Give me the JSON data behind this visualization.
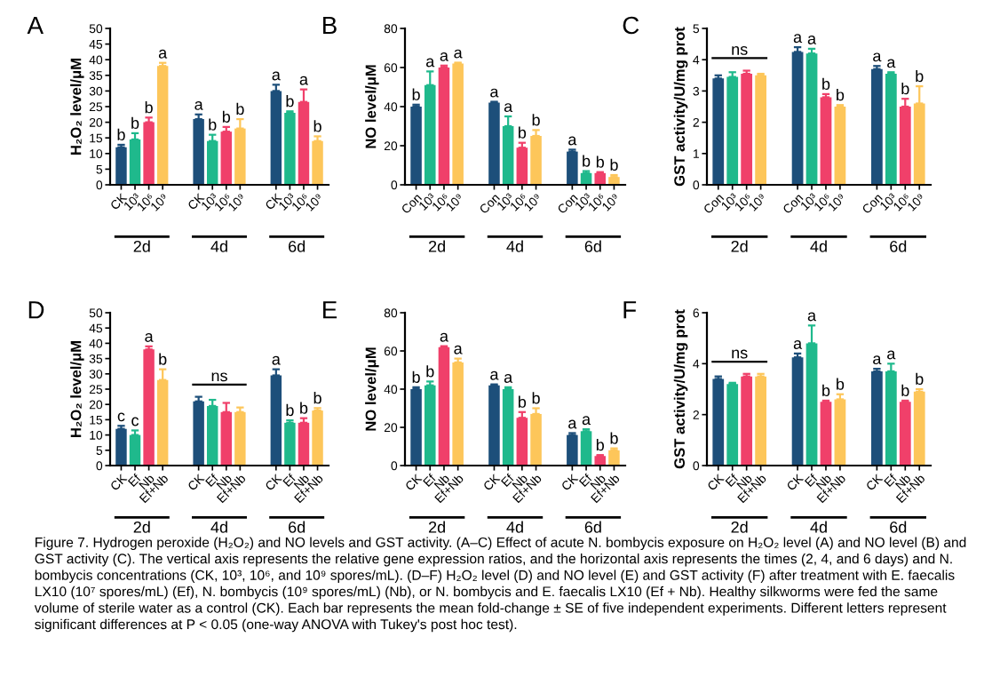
{
  "chart_data": [
    {
      "type": "bar",
      "title": "A",
      "ylabel": "H₂O₂ level/μM",
      "categories": [
        "2d",
        "4d",
        "6d"
      ],
      "ylim": [
        0,
        50
      ],
      "yticks": [
        0,
        5,
        10,
        15,
        20,
        25,
        30,
        35,
        40,
        45,
        50
      ],
      "series": [
        {
          "name": "CK",
          "color": "#1d4f7a",
          "values": [
            12,
            21,
            30
          ],
          "errors": [
            0.8,
            1.5,
            2
          ],
          "value_labels": [
            "b",
            "a",
            "a"
          ]
        },
        {
          "name": "10³",
          "color": "#1fb98c",
          "values": [
            14.5,
            14,
            23
          ],
          "errors": [
            2,
            2,
            0.5
          ],
          "value_labels": [
            "b",
            "b",
            "b"
          ]
        },
        {
          "name": "10⁶",
          "color": "#f0406a",
          "values": [
            20,
            17,
            26.5
          ],
          "errors": [
            1.5,
            1.5,
            4
          ],
          "value_labels": [
            "b",
            "b",
            "a"
          ]
        },
        {
          "name": "10⁹",
          "color": "#fdc65a",
          "values": [
            38,
            18,
            14
          ],
          "errors": [
            1,
            3,
            1.5
          ],
          "value_labels": [
            "a",
            "b",
            "b"
          ]
        }
      ]
    },
    {
      "type": "bar",
      "title": "B",
      "ylabel": "NO level/μM",
      "categories": [
        "2d",
        "4d",
        "6d"
      ],
      "ylim": [
        0,
        80
      ],
      "yticks": [
        0,
        20,
        40,
        60,
        80
      ],
      "series": [
        {
          "name": "Con",
          "color": "#1d4f7a",
          "values": [
            40,
            42,
            17
          ],
          "errors": [
            1,
            0.5,
            1
          ],
          "value_labels": [
            "b",
            "a",
            "a"
          ]
        },
        {
          "name": "10³",
          "color": "#1fb98c",
          "values": [
            51,
            30,
            6
          ],
          "errors": [
            7,
            5,
            1
          ],
          "value_labels": [
            "a",
            "a",
            "b"
          ]
        },
        {
          "name": "10⁶",
          "color": "#f0406a",
          "values": [
            60,
            19,
            6
          ],
          "errors": [
            1,
            2.5,
            0.5
          ],
          "value_labels": [
            "a",
            "b",
            "b"
          ]
        },
        {
          "name": "10⁹",
          "color": "#fdc65a",
          "values": [
            62,
            25,
            4
          ],
          "errors": [
            0.5,
            3,
            1
          ],
          "value_labels": [
            "a",
            "b",
            "b"
          ]
        }
      ]
    },
    {
      "type": "bar",
      "title": "C",
      "ylabel": "GST activity/U/mg prot",
      "categories": [
        "2d",
        "4d",
        "6d"
      ],
      "ylim": [
        0,
        5
      ],
      "yticks": [
        0,
        1,
        2,
        3,
        4,
        5
      ],
      "annotations": [
        "ns"
      ],
      "series": [
        {
          "name": "Con",
          "color": "#1d4f7a",
          "values": [
            3.4,
            4.25,
            3.7
          ],
          "errors": [
            0.1,
            0.15,
            0.1
          ],
          "value_labels": [
            null,
            "a",
            "a"
          ]
        },
        {
          "name": "10³",
          "color": "#1fb98c",
          "values": [
            3.45,
            4.2,
            3.55
          ],
          "errors": [
            0.15,
            0.15,
            0.05
          ],
          "value_labels": [
            null,
            "a",
            "a"
          ]
        },
        {
          "name": "10⁶",
          "color": "#f0406a",
          "values": [
            3.55,
            2.8,
            2.5
          ],
          "errors": [
            0.1,
            0.1,
            0.25
          ],
          "value_labels": [
            null,
            "b",
            "b"
          ]
        },
        {
          "name": "10⁹",
          "color": "#fdc65a",
          "values": [
            3.5,
            2.5,
            2.6
          ],
          "errors": [
            0.05,
            0.05,
            0.55
          ],
          "value_labels": [
            null,
            "b",
            "b"
          ]
        }
      ]
    },
    {
      "type": "bar",
      "title": "D",
      "ylabel": "H₂O₂ level/μM",
      "categories": [
        "2d",
        "4d",
        "6d"
      ],
      "ylim": [
        0,
        50
      ],
      "yticks": [
        0,
        5,
        10,
        15,
        20,
        25,
        30,
        35,
        40,
        45,
        50
      ],
      "annotations": [
        "ns"
      ],
      "series": [
        {
          "name": "CK",
          "color": "#1d4f7a",
          "values": [
            12,
            21,
            29.5
          ],
          "errors": [
            1,
            1.5,
            2
          ],
          "value_labels": [
            "c",
            null,
            "a"
          ]
        },
        {
          "name": "Ef",
          "color": "#1fb98c",
          "values": [
            10,
            19.5,
            14
          ],
          "errors": [
            1.5,
            2,
            0.8
          ],
          "value_labels": [
            "c",
            null,
            "b"
          ]
        },
        {
          "name": "Nb",
          "color": "#f0406a",
          "values": [
            38,
            17.5,
            14
          ],
          "errors": [
            1,
            3,
            1.5
          ],
          "value_labels": [
            "a",
            null,
            "b"
          ]
        },
        {
          "name": "Ef+Nb",
          "color": "#fdc65a",
          "values": [
            28,
            17.5,
            18
          ],
          "errors": [
            3.5,
            1.5,
            0.8
          ],
          "value_labels": [
            "b",
            null,
            "b"
          ]
        }
      ]
    },
    {
      "type": "bar",
      "title": "E",
      "ylabel": "NO level/μM",
      "categories": [
        "2d",
        "4d",
        "6d"
      ],
      "ylim": [
        0,
        80
      ],
      "yticks": [
        0,
        20,
        40,
        60,
        80
      ],
      "series": [
        {
          "name": "CK",
          "color": "#1d4f7a",
          "values": [
            40,
            42,
            16
          ],
          "errors": [
            1,
            0.5,
            1
          ],
          "value_labels": [
            "b",
            "a",
            "a"
          ]
        },
        {
          "name": "Ef",
          "color": "#1fb98c",
          "values": [
            42,
            40,
            18
          ],
          "errors": [
            2,
            1,
            1
          ],
          "value_labels": [
            "b",
            "a",
            "a"
          ]
        },
        {
          "name": "Nb",
          "color": "#f0406a",
          "values": [
            62,
            25,
            5
          ],
          "errors": [
            0.5,
            3,
            0.5
          ],
          "value_labels": [
            "a",
            "b",
            "b"
          ]
        },
        {
          "name": "Ef+Nb",
          "color": "#fdc65a",
          "values": [
            54,
            27,
            8
          ],
          "errors": [
            2,
            3,
            1
          ],
          "value_labels": [
            "a",
            "b",
            "b"
          ]
        }
      ]
    },
    {
      "type": "bar",
      "title": "F",
      "ylabel": "GST activity/U/mg prot",
      "categories": [
        "2d",
        "4d",
        "6d"
      ],
      "ylim": [
        0,
        6
      ],
      "yticks": [
        0,
        2,
        4,
        6
      ],
      "annotations": [
        "ns",
        "Figure 7. Hydrogen peroxide (H₂O₂) and NO levels and GST activity. (A–C) Effect of acute N. bombycis exposure on H₂O₂ level (A) and NO level (B) and GST activity (C). The vertical axis represents the relative gene expression ratios, and the horizontal axis represents the times (2, 4, and 6 days) and N. bombycis concentrations (CK, 10³, 10⁶, and 10⁹ spores/mL). (D–F) H₂O₂ level (D) and NO level (E) and GST activity (F) after treatment with E. faecalis LX10 (10⁷ spores/mL) (Ef), N. bombycis (10⁹ spores/mL) (Nb), or N. bombycis and E. faecalis LX10 (Ef + Nb). Healthy silkworms were fed the same volume of sterile water as a control (CK). Each bar represents the mean fold-change ± SE of five independent experiments. Different letters represent significant differences at P < 0.05 (one-way ANOVA with Tukey's post hoc test)."
      ],
      "series": [
        {
          "name": "CK",
          "color": "#1d4f7a",
          "values": [
            3.4,
            4.25,
            3.7
          ],
          "errors": [
            0.1,
            0.15,
            0.1
          ],
          "value_labels": [
            null,
            "a",
            "a"
          ]
        },
        {
          "name": "Ef",
          "color": "#1fb98c",
          "values": [
            3.2,
            4.8,
            3.7
          ],
          "errors": [
            0.05,
            0.7,
            0.3
          ],
          "value_labels": [
            null,
            "a",
            "a"
          ]
        },
        {
          "name": "Nb",
          "color": "#f0406a",
          "values": [
            3.5,
            2.5,
            2.5
          ],
          "errors": [
            0.1,
            0.05,
            0.05
          ],
          "value_labels": [
            null,
            "b",
            "b"
          ]
        },
        {
          "name": "Ef+Nb",
          "color": "#fdc65a",
          "values": [
            3.5,
            2.6,
            2.9
          ],
          "errors": [
            0.1,
            0.2,
            0.1
          ],
          "value_labels": [
            null,
            "b",
            "b"
          ]
        }
      ]
    }
  ]
}
